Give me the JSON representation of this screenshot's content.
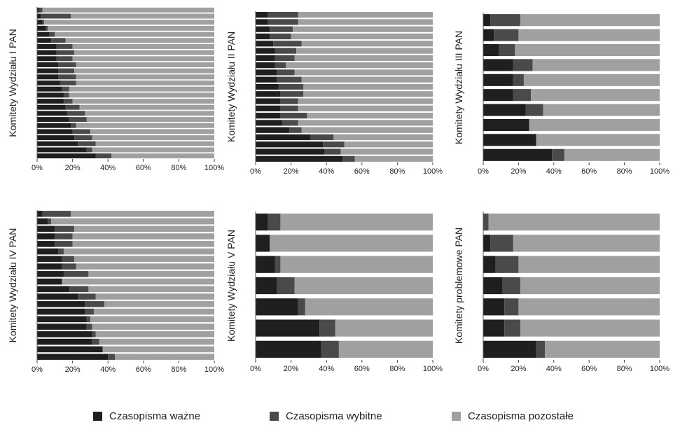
{
  "colors": {
    "wazne": "#1f1f1f",
    "wybitne": "#4a4a4a",
    "pozostale": "#a0a0a0",
    "grid": "#ffffff"
  },
  "legend": [
    {
      "label": "Czasopisma ważne",
      "color_key": "wazne"
    },
    {
      "label": "Czasopisma wybitne",
      "color_key": "wybitne"
    },
    {
      "label": "Czasopisma pozostałe",
      "color_key": "pozostale"
    }
  ],
  "chart_data": [
    {
      "type": "bar",
      "orientation": "horizontal",
      "stacked": true,
      "ylabel": "Komitety Wydziału I PAN",
      "xticks": [
        "0%",
        "20%",
        "40%",
        "60%",
        "80%",
        "100%"
      ],
      "xlim": [
        0,
        100
      ],
      "series": [
        {
          "name": "Czasopisma ważne",
          "values": [
            1,
            2,
            3,
            5,
            7,
            8,
            11,
            11,
            11,
            12,
            12,
            12,
            13,
            14,
            15,
            15,
            16,
            17,
            18,
            19,
            20,
            21,
            23,
            28,
            33
          ]
        },
        {
          "name": "Czasopisma wybitne",
          "values": [
            2,
            17,
            1,
            1,
            3,
            8,
            9,
            10,
            9,
            10,
            9,
            10,
            9,
            4,
            3,
            5,
            8,
            10,
            10,
            3,
            10,
            10,
            10,
            3,
            9
          ]
        },
        {
          "name": "Czasopisma pozostałe",
          "values": [
            97,
            81,
            96,
            94,
            90,
            84,
            80,
            79,
            80,
            78,
            79,
            78,
            78,
            82,
            82,
            80,
            76,
            73,
            72,
            78,
            70,
            69,
            67,
            69,
            58
          ]
        }
      ]
    },
    {
      "type": "bar",
      "orientation": "horizontal",
      "stacked": true,
      "ylabel": "Komitety Wydziału II PAN",
      "xticks": [
        "0%",
        "20%",
        "40%",
        "60%",
        "80%",
        "100%"
      ],
      "xlim": [
        0,
        100
      ],
      "series": [
        {
          "name": "Czasopisma ważne",
          "values": [
            7,
            7,
            8,
            8,
            10,
            11,
            11,
            11,
            12,
            12,
            13,
            14,
            14,
            14,
            14,
            15,
            19,
            31,
            38,
            39,
            49
          ]
        },
        {
          "name": "Czasopisma wybitne",
          "values": [
            17,
            17,
            13,
            12,
            16,
            12,
            11,
            6,
            10,
            14,
            14,
            13,
            10,
            10,
            15,
            9,
            7,
            13,
            12,
            9,
            7
          ]
        },
        {
          "name": "Czasopisma pozostałe",
          "values": [
            76,
            76,
            79,
            80,
            74,
            77,
            78,
            83,
            78,
            74,
            73,
            73,
            76,
            76,
            71,
            76,
            74,
            56,
            50,
            52,
            44
          ]
        }
      ]
    },
    {
      "type": "bar",
      "orientation": "horizontal",
      "stacked": true,
      "ylabel": "Komitety Wydziału III PAN",
      "xticks": [
        "0%",
        "20%",
        "40%",
        "60%",
        "80%",
        "100%"
      ],
      "xlim": [
        0,
        100
      ],
      "series": [
        {
          "name": "Czasopisma ważne",
          "values": [
            4,
            6,
            9,
            17,
            17,
            17,
            24,
            26,
            30,
            39
          ]
        },
        {
          "name": "Czasopisma wybitne",
          "values": [
            17,
            14,
            9,
            11,
            6,
            10,
            10,
            0,
            0,
            7
          ]
        },
        {
          "name": "Czasopisma pozostałe",
          "values": [
            79,
            80,
            82,
            72,
            77,
            73,
            66,
            74,
            70,
            54
          ]
        }
      ]
    },
    {
      "type": "bar",
      "orientation": "horizontal",
      "stacked": true,
      "ylabel": "Komitety Wydziału  IV PAN",
      "xticks": [
        "0%",
        "20%",
        "40%",
        "60%",
        "80%",
        "100%"
      ],
      "xlim": [
        0,
        100
      ],
      "series": [
        {
          "name": "Czasopisma ważne",
          "values": [
            3,
            6,
            10,
            10,
            10,
            12,
            14,
            14,
            15,
            14,
            18,
            23,
            27,
            27,
            28,
            28,
            31,
            31,
            37,
            40
          ]
        },
        {
          "name": "Czasopisma wybitne",
          "values": [
            16,
            2,
            11,
            10,
            10,
            3,
            7,
            8,
            14,
            0,
            11,
            10,
            11,
            5,
            2,
            3,
            2,
            4,
            0,
            4
          ]
        },
        {
          "name": "Czasopisma pozostałe",
          "values": [
            81,
            92,
            79,
            80,
            80,
            85,
            79,
            78,
            71,
            86,
            71,
            67,
            62,
            68,
            70,
            69,
            67,
            65,
            63,
            56
          ]
        }
      ]
    },
    {
      "type": "bar",
      "orientation": "horizontal",
      "stacked": true,
      "ylabel": "Komitety Wydziału V PAN",
      "xticks": [
        "0%",
        "20%",
        "40%",
        "60%",
        "80%",
        "100%"
      ],
      "xlim": [
        0,
        100
      ],
      "series": [
        {
          "name": "Czasopisma ważne",
          "values": [
            7,
            8,
            11,
            12,
            24,
            36,
            37
          ]
        },
        {
          "name": "Czasopisma wybitne",
          "values": [
            7,
            0,
            3,
            10,
            4,
            9,
            10
          ]
        },
        {
          "name": "Czasopisma pozostałe",
          "values": [
            86,
            92,
            86,
            78,
            72,
            55,
            53
          ]
        }
      ]
    },
    {
      "type": "bar",
      "orientation": "horizontal",
      "stacked": true,
      "ylabel": "Komitety problemowe PAN",
      "xticks": [
        "0%",
        "20%",
        "40%",
        "60%",
        "80%",
        "100%"
      ],
      "xlim": [
        0,
        100
      ],
      "series": [
        {
          "name": "Czasopisma ważne",
          "values": [
            0,
            4,
            7,
            11,
            12,
            12,
            30
          ]
        },
        {
          "name": "Czasopisma wybitne",
          "values": [
            3,
            13,
            13,
            10,
            8,
            9,
            5
          ]
        },
        {
          "name": "Czasopisma pozostałe",
          "values": [
            97,
            83,
            80,
            79,
            80,
            79,
            65
          ]
        }
      ]
    }
  ]
}
